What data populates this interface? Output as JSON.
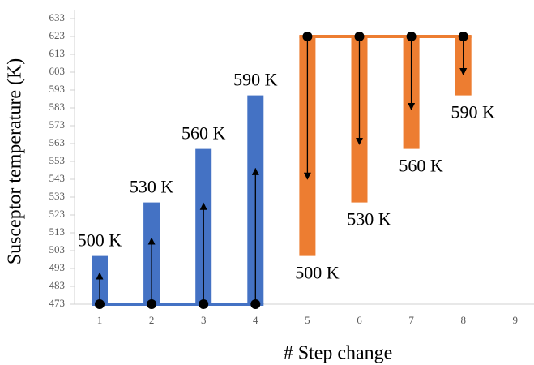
{
  "chart_data": {
    "type": "floating-bar",
    "xlabel": "# Step change",
    "ylabel": "Susceptor temperature (K)",
    "categories": [
      1,
      2,
      3,
      4,
      5,
      6,
      7,
      8,
      9
    ],
    "ylim": [
      473,
      633
    ],
    "yticks": [
      473,
      483,
      493,
      503,
      513,
      523,
      533,
      543,
      553,
      563,
      573,
      583,
      593,
      603,
      613,
      623,
      633
    ],
    "grid": false,
    "series": [
      {
        "color": "#4472c4",
        "base": 473,
        "values": [
          500,
          530,
          560,
          590,
          null,
          null,
          null,
          null,
          null
        ],
        "value_labels": [
          "500 K",
          "530 K",
          "560 K",
          "590 K",
          null,
          null,
          null,
          null,
          null
        ]
      },
      {
        "color": "#ed7d31",
        "base": 623,
        "values": [
          null,
          null,
          null,
          null,
          500,
          530,
          560,
          590,
          null
        ],
        "value_labels": [
          null,
          null,
          null,
          null,
          "500 K",
          "530 K",
          "560 K",
          "590 K",
          null
        ]
      }
    ]
  }
}
